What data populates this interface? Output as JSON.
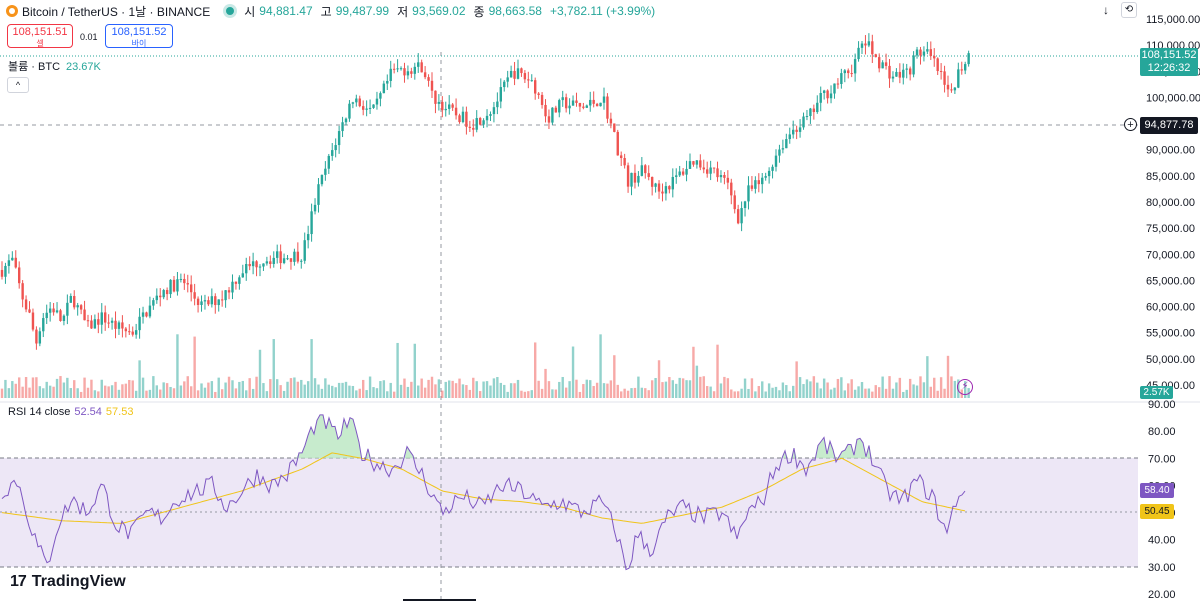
{
  "header": {
    "title": "Bitcoin / TetherUS · 1날 · BINANCE",
    "open_label": "시",
    "open": "94,881.47",
    "high_label": "고",
    "high": "99,487.99",
    "low_label": "저",
    "low": "93,569.02",
    "close_label": "종",
    "close": "98,663.58",
    "change": "+3,782.11 (+3.99%)",
    "icons": [
      "bitcoin-coin-icon",
      "live-dot-icon",
      "arrow-down-icon",
      "reset-icon"
    ]
  },
  "trade": {
    "sell_price": "108,151.51",
    "sell_label": "셀",
    "spread": "0.01",
    "buy_price": "108,151.52",
    "buy_label": "바이"
  },
  "volume_legend": {
    "label": "볼륨 · BTC",
    "value": "23.67K",
    "collapse_icon": "^"
  },
  "rsi_legend": {
    "label": "RSI 14 close",
    "rsi": "52.54",
    "ma": "57.53"
  },
  "tags": {
    "current_price": "108,151.52",
    "countdown": "12:26:32",
    "crosshair_price": "94,877.78",
    "volume": "2.57K",
    "rsi": "58.40",
    "rsi_ma": "50.45"
  },
  "logo": {
    "mark": "17",
    "text": "TradingView"
  },
  "colors": {
    "up": "#26a69a",
    "down": "#ef5350",
    "rsi": "#7e57c2",
    "rsi_ma": "#f0c419",
    "band": "#ede7f6"
  },
  "chart_data": [
    {
      "type": "candlestick",
      "ylim": [
        45000,
        115000
      ],
      "yticks": [
        "45,000.00",
        "50,000.00",
        "55,000.00",
        "60,000.00",
        "65,000.00",
        "70,000.00",
        "75,000.00",
        "80,000.00",
        "85,000.00",
        "90,000.00",
        "95,000.00",
        "100,000.00",
        "105,000.00",
        "110,000.00",
        "115,000.00"
      ],
      "grid": false,
      "current_price": 108151.52,
      "crosshair_price": 94877.78,
      "anchors": [
        [
          0,
          67000
        ],
        [
          10,
          69000
        ],
        [
          20,
          62000
        ],
        [
          28,
          58000
        ],
        [
          34,
          53000
        ],
        [
          40,
          58000
        ],
        [
          50,
          60000
        ],
        [
          60,
          57000
        ],
        [
          70,
          62000
        ],
        [
          85,
          56000
        ],
        [
          100,
          58000
        ],
        [
          115,
          56000
        ],
        [
          130,
          55000
        ],
        [
          140,
          58000
        ],
        [
          160,
          63000
        ],
        [
          180,
          65000
        ],
        [
          200,
          60000
        ],
        [
          220,
          62000
        ],
        [
          240,
          67000
        ],
        [
          260,
          69000
        ],
        [
          280,
          69500
        ],
        [
          300,
          70000
        ],
        [
          315,
          82000
        ],
        [
          330,
          90000
        ],
        [
          350,
          100000
        ],
        [
          370,
          97000
        ],
        [
          390,
          105000
        ],
        [
          420,
          106000
        ],
        [
          430,
          100000
        ],
        [
          450,
          97000
        ],
        [
          470,
          95000
        ],
        [
          490,
          98000
        ],
        [
          510,
          105000
        ],
        [
          530,
          103000
        ],
        [
          545,
          96000
        ],
        [
          560,
          99000
        ],
        [
          580,
          98000
        ],
        [
          600,
          100000
        ],
        [
          615,
          90000
        ],
        [
          625,
          84000
        ],
        [
          640,
          86000
        ],
        [
          655,
          82000
        ],
        [
          670,
          84000
        ],
        [
          690,
          88000
        ],
        [
          710,
          86000
        ],
        [
          725,
          83000
        ],
        [
          735,
          77000
        ],
        [
          745,
          82000
        ],
        [
          760,
          84000
        ],
        [
          775,
          90000
        ],
        [
          790,
          94000
        ],
        [
          805,
          96000
        ],
        [
          818,
          100000
        ],
        [
          835,
          103000
        ],
        [
          850,
          106000
        ],
        [
          860,
          111000
        ],
        [
          875,
          107000
        ],
        [
          890,
          104000
        ],
        [
          905,
          105000
        ],
        [
          915,
          109000
        ],
        [
          925,
          108000
        ],
        [
          935,
          105000
        ],
        [
          945,
          100000
        ],
        [
          955,
          105000
        ],
        [
          965,
          108151
        ]
      ],
      "volume": {
        "max_label": "2.57K"
      }
    },
    {
      "type": "line",
      "name": "RSI 14 close",
      "ylim": [
        20,
        90
      ],
      "yticks": [
        "20.00",
        "30.00",
        "40.00",
        "50.00",
        "60.00",
        "70.00",
        "80.00",
        "90.00"
      ],
      "bands": [
        30,
        70
      ],
      "midline": 50,
      "anchors": [
        [
          0,
          58
        ],
        [
          15,
          62
        ],
        [
          25,
          50
        ],
        [
          35,
          38
        ],
        [
          45,
          30
        ],
        [
          55,
          45
        ],
        [
          70,
          55
        ],
        [
          85,
          50
        ],
        [
          100,
          60
        ],
        [
          115,
          45
        ],
        [
          130,
          42
        ],
        [
          145,
          50
        ],
        [
          160,
          48
        ],
        [
          175,
          55
        ],
        [
          195,
          58
        ],
        [
          210,
          60
        ],
        [
          225,
          52
        ],
        [
          240,
          58
        ],
        [
          255,
          64
        ],
        [
          270,
          60
        ],
        [
          285,
          64
        ],
        [
          300,
          72
        ],
        [
          312,
          82
        ],
        [
          322,
          84
        ],
        [
          335,
          78
        ],
        [
          348,
          84
        ],
        [
          360,
          72
        ],
        [
          375,
          68
        ],
        [
          390,
          66
        ],
        [
          405,
          72
        ],
        [
          420,
          64
        ],
        [
          440,
          50
        ],
        [
          460,
          56
        ],
        [
          480,
          52
        ],
        [
          500,
          60
        ],
        [
          520,
          58
        ],
        [
          540,
          52
        ],
        [
          560,
          54
        ],
        [
          580,
          50
        ],
        [
          600,
          54
        ],
        [
          615,
          42
        ],
        [
          625,
          28
        ],
        [
          635,
          42
        ],
        [
          650,
          36
        ],
        [
          665,
          48
        ],
        [
          680,
          52
        ],
        [
          700,
          48
        ],
        [
          720,
          50
        ],
        [
          735,
          40
        ],
        [
          745,
          50
        ],
        [
          760,
          54
        ],
        [
          775,
          68
        ],
        [
          790,
          72
        ],
        [
          805,
          66
        ],
        [
          820,
          76
        ],
        [
          835,
          70
        ],
        [
          848,
          72
        ],
        [
          858,
          78
        ],
        [
          870,
          70
        ],
        [
          885,
          58
        ],
        [
          900,
          54
        ],
        [
          915,
          62
        ],
        [
          930,
          56
        ],
        [
          945,
          42
        ],
        [
          955,
          56
        ],
        [
          965,
          58.4
        ]
      ],
      "ma_anchors": [
        [
          0,
          50
        ],
        [
          60,
          47
        ],
        [
          120,
          46
        ],
        [
          180,
          52
        ],
        [
          240,
          58
        ],
        [
          300,
          66
        ],
        [
          330,
          72
        ],
        [
          360,
          70
        ],
        [
          400,
          66
        ],
        [
          440,
          58
        ],
        [
          480,
          55
        ],
        [
          520,
          54
        ],
        [
          560,
          52
        ],
        [
          600,
          48
        ],
        [
          640,
          46
        ],
        [
          680,
          49
        ],
        [
          720,
          52
        ],
        [
          760,
          58
        ],
        [
          800,
          66
        ],
        [
          840,
          70
        ],
        [
          880,
          62
        ],
        [
          920,
          54
        ],
        [
          965,
          50.45
        ]
      ]
    }
  ]
}
